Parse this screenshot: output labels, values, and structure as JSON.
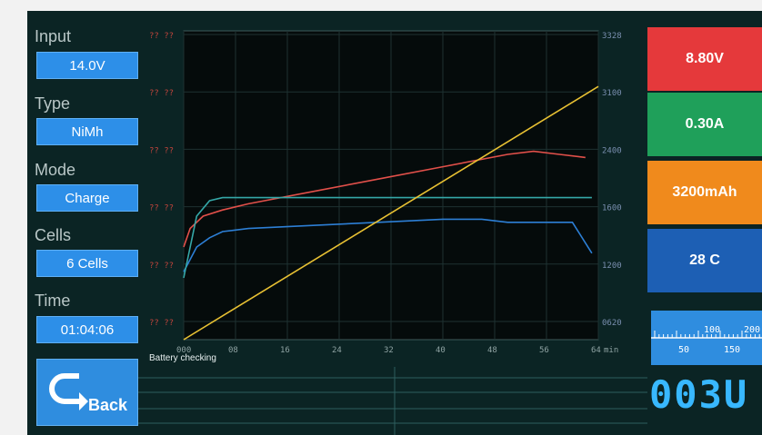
{
  "sidebar": {
    "input_label": "Input",
    "input_value": "14.0V",
    "type_label": "Type",
    "type_value": "NiMh",
    "mode_label": "Mode",
    "mode_value": "Charge",
    "cells_label": "Cells",
    "cells_value": "6 Cells",
    "time_label": "Time",
    "time_value": "01:04:06",
    "back_label": "Back"
  },
  "readouts": {
    "voltage": "8.80V",
    "current": "0.30A",
    "capacity": "3200mAh",
    "temperature": "28 C",
    "counter": "003U"
  },
  "status": {
    "message": "Battery checking"
  },
  "gauge": {
    "ticks_top": [
      "100",
      "200"
    ],
    "ticks_bottom": [
      "50",
      "150"
    ]
  },
  "colors": {
    "voltage_box": "#e5393b",
    "current_box": "#1fa05a",
    "capacity_box": "#f08a1c",
    "temperature_box": "#1d5fb4",
    "voltage_line": "#e2504a",
    "current_line": "#2d7fd5",
    "temperature_line": "#35a8a8",
    "capacity_line": "#e8c133"
  },
  "chart_data": {
    "type": "line",
    "x_unit": "min",
    "x_ticks": [
      "000",
      "08",
      "16",
      "24",
      "32",
      "40",
      "48",
      "56",
      "64"
    ],
    "xlim": [
      0,
      64
    ],
    "left_ticks_red": [
      "?? ??",
      "?? ??",
      "?? ??",
      "?? ??",
      "?? ??",
      "?? ??"
    ],
    "right_ticks": [
      "3328",
      "3100",
      "2400",
      "1600",
      "1200",
      "0620"
    ],
    "series": [
      {
        "x": [
          0,
          1,
          3,
          6,
          10,
          20,
          30,
          40,
          50,
          54,
          58,
          62
        ],
        "y": [
          0.3,
          0.36,
          0.4,
          0.42,
          0.44,
          0.48,
          0.52,
          0.56,
          0.6,
          0.61,
          0.6,
          0.59
        ]
      },
      {
        "x": [
          0,
          2,
          4,
          6,
          10,
          20,
          30,
          40,
          46,
          50,
          60,
          63
        ],
        "y": [
          0.22,
          0.3,
          0.33,
          0.35,
          0.36,
          0.37,
          0.38,
          0.39,
          0.39,
          0.38,
          0.38,
          0.28
        ]
      },
      {
        "x": [
          0,
          2,
          4,
          6,
          10,
          20,
          30,
          40,
          50,
          60,
          63
        ],
        "y": [
          0.2,
          0.4,
          0.45,
          0.46,
          0.46,
          0.46,
          0.46,
          0.46,
          0.46,
          0.46,
          0.46
        ]
      },
      {
        "x": [
          0,
          64
        ],
        "y": [
          0.0,
          0.82
        ]
      }
    ]
  }
}
